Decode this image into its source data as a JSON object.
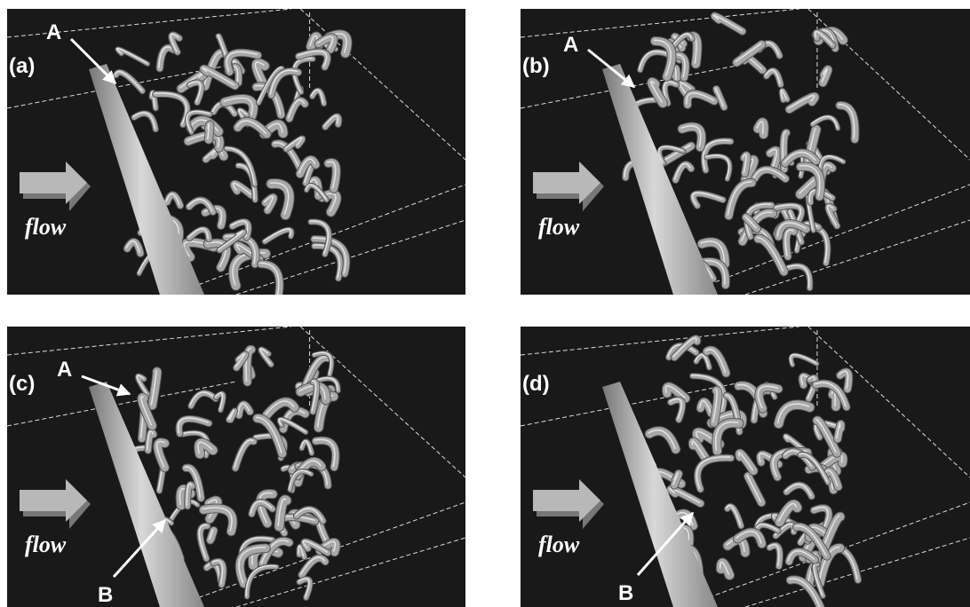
{
  "panels": [
    {
      "label": "(a)",
      "flow_label": "flow",
      "markers": [
        "A"
      ]
    },
    {
      "label": "(b)",
      "flow_label": "flow",
      "markers": [
        "A"
      ]
    },
    {
      "label": "(c)",
      "flow_label": "flow",
      "markers": [
        "A",
        "B"
      ]
    },
    {
      "label": "(d)",
      "flow_label": "flow",
      "markers": [
        "B"
      ]
    }
  ]
}
